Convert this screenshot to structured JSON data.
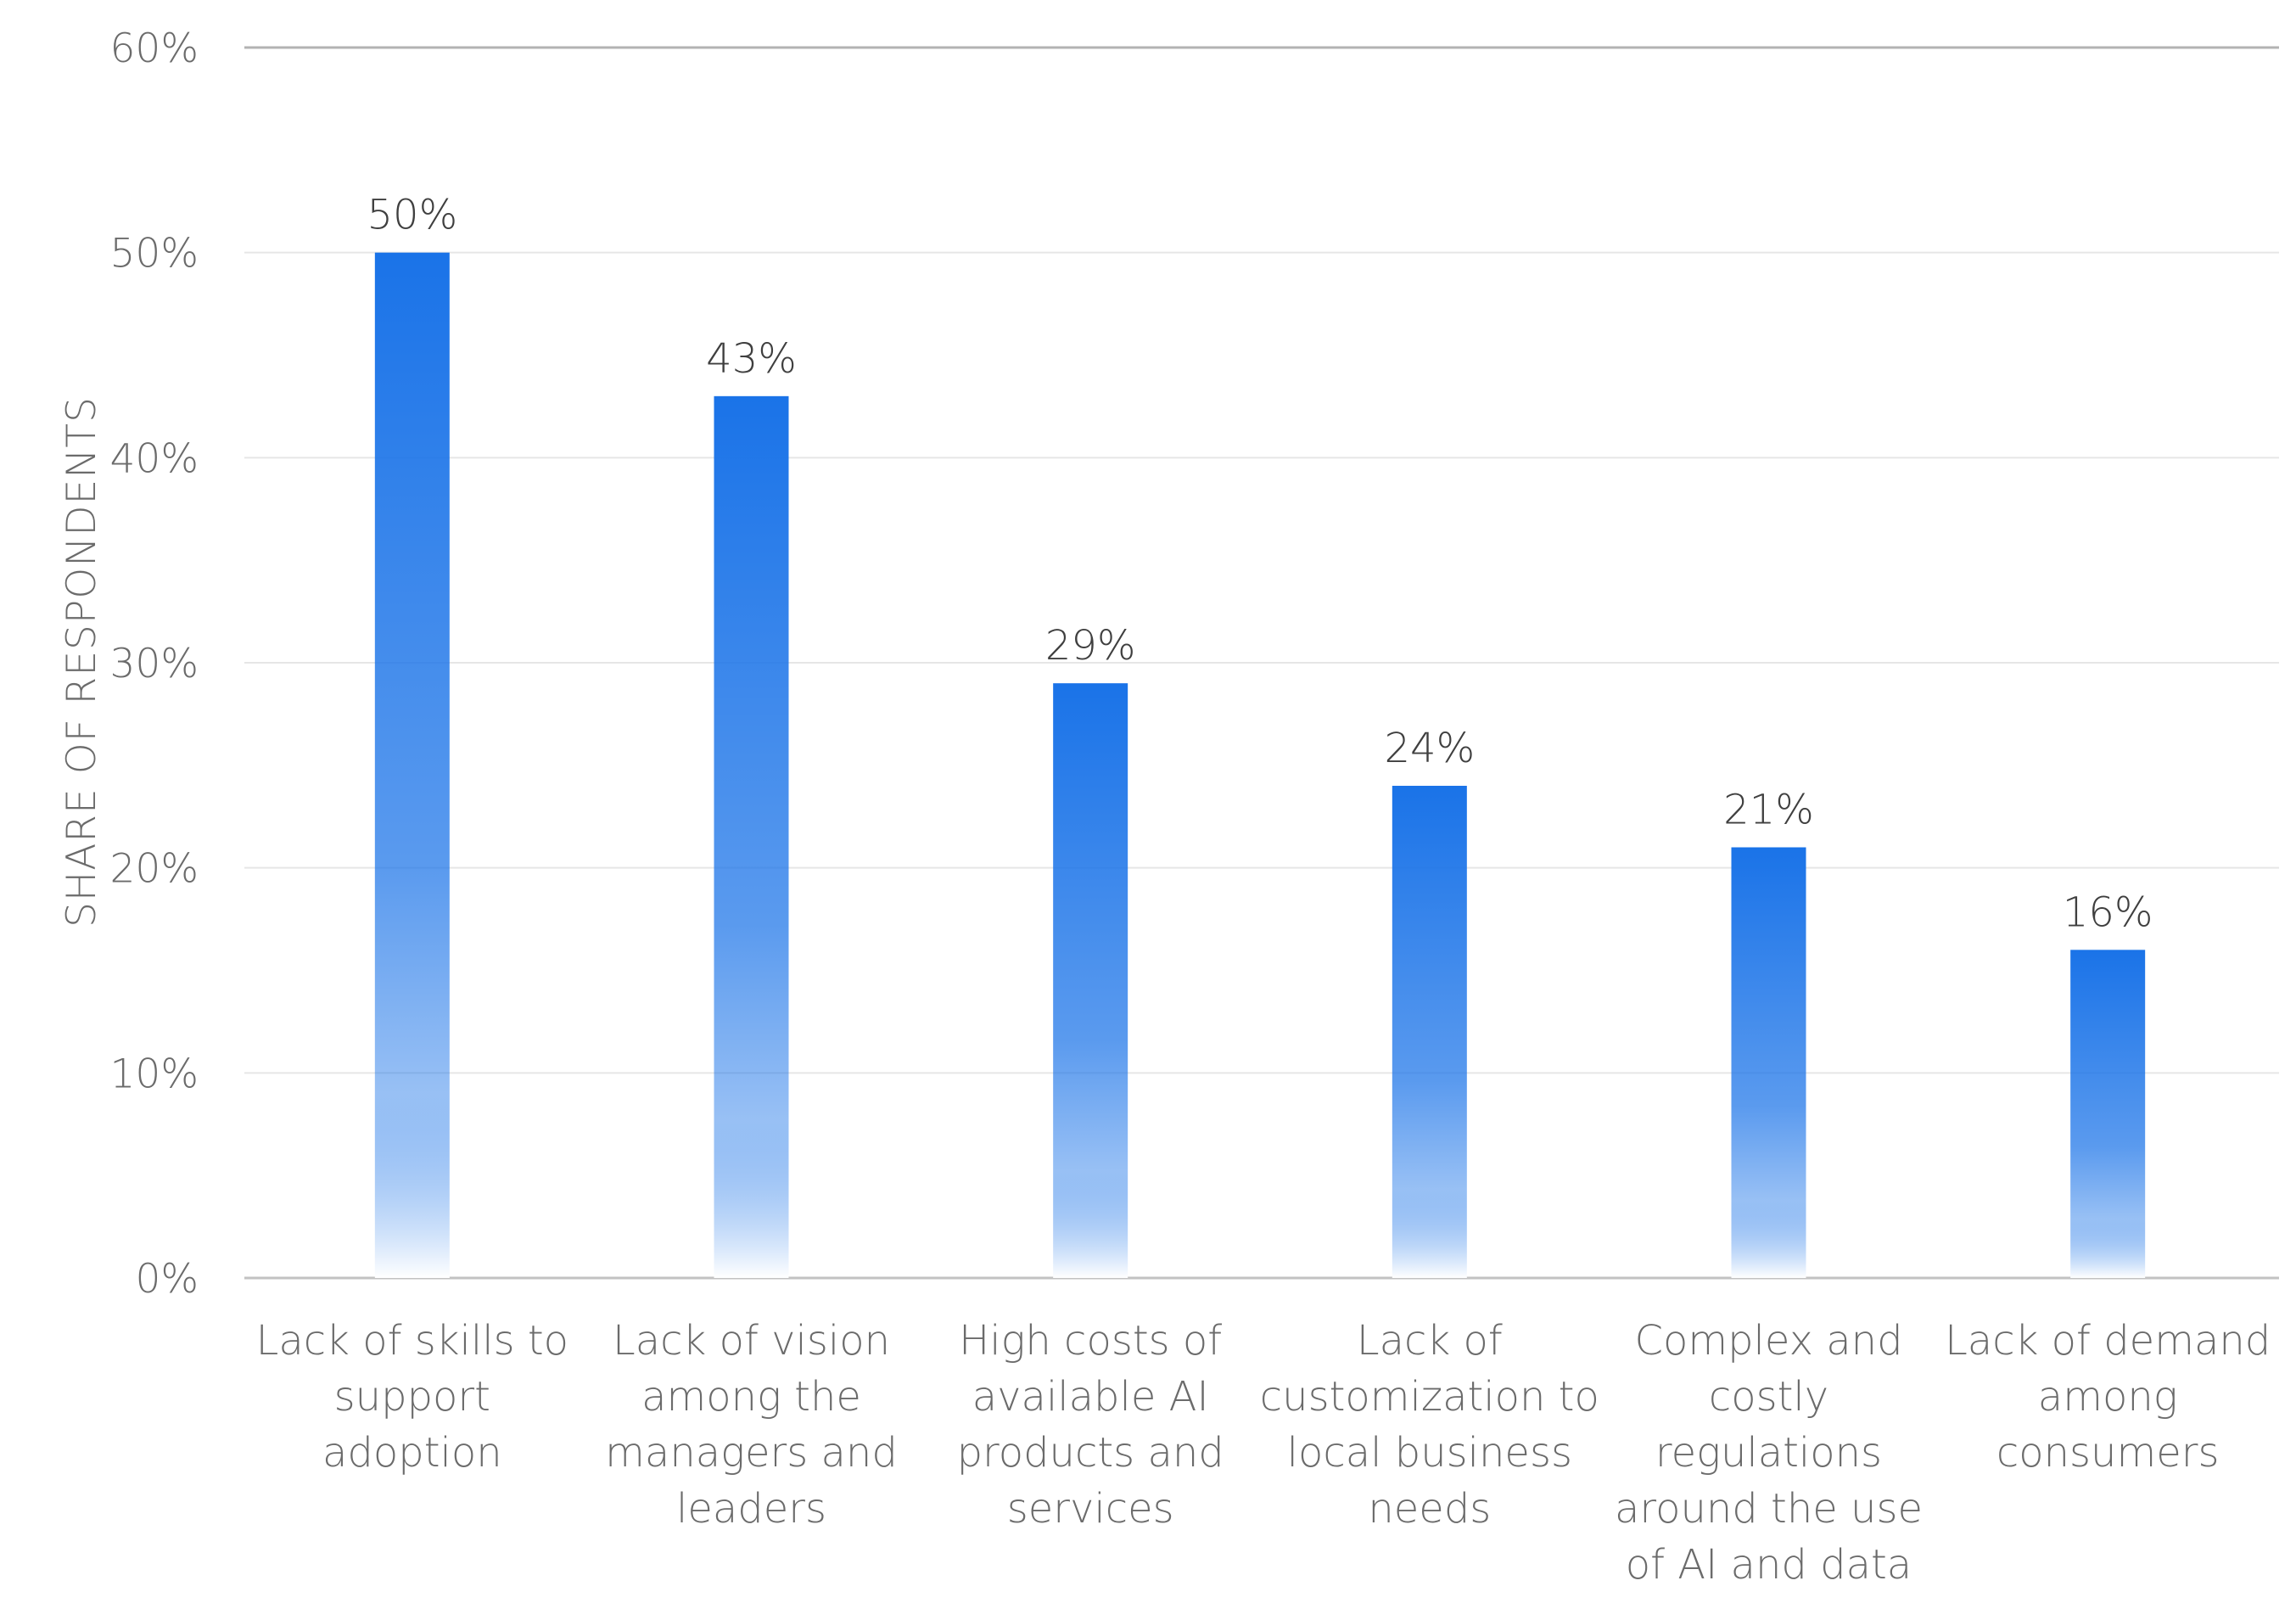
{
  "chart_data": {
    "type": "bar",
    "ylabel": "SHARE OF RESPONDENTS",
    "xlabel": "",
    "ylim": [
      0,
      60
    ],
    "y_ticks": [
      "0%",
      "10%",
      "20%",
      "30%",
      "40%",
      "50%",
      "60%"
    ],
    "grid": true,
    "categories": [
      [
        "Lack of skills to",
        "support",
        "adoption"
      ],
      [
        "Lack of vision",
        "among the",
        "managers and",
        "leaders"
      ],
      [
        "High costs of",
        "available AI",
        "products and",
        "services"
      ],
      [
        "Lack of",
        "customization to",
        "local business",
        "needs"
      ],
      [
        "Complex and",
        "costly",
        "regulations",
        "around the use",
        "of AI and data"
      ],
      [
        "Lack of demand",
        "among",
        "consumers"
      ]
    ],
    "values": [
      50,
      43,
      29,
      24,
      21,
      16
    ],
    "data_labels": [
      "50%",
      "43%",
      "29%",
      "24%",
      "21%",
      "16%"
    ],
    "colors": {
      "bar_top": "#1a73e8",
      "bar_fade": "#ffffff"
    }
  }
}
